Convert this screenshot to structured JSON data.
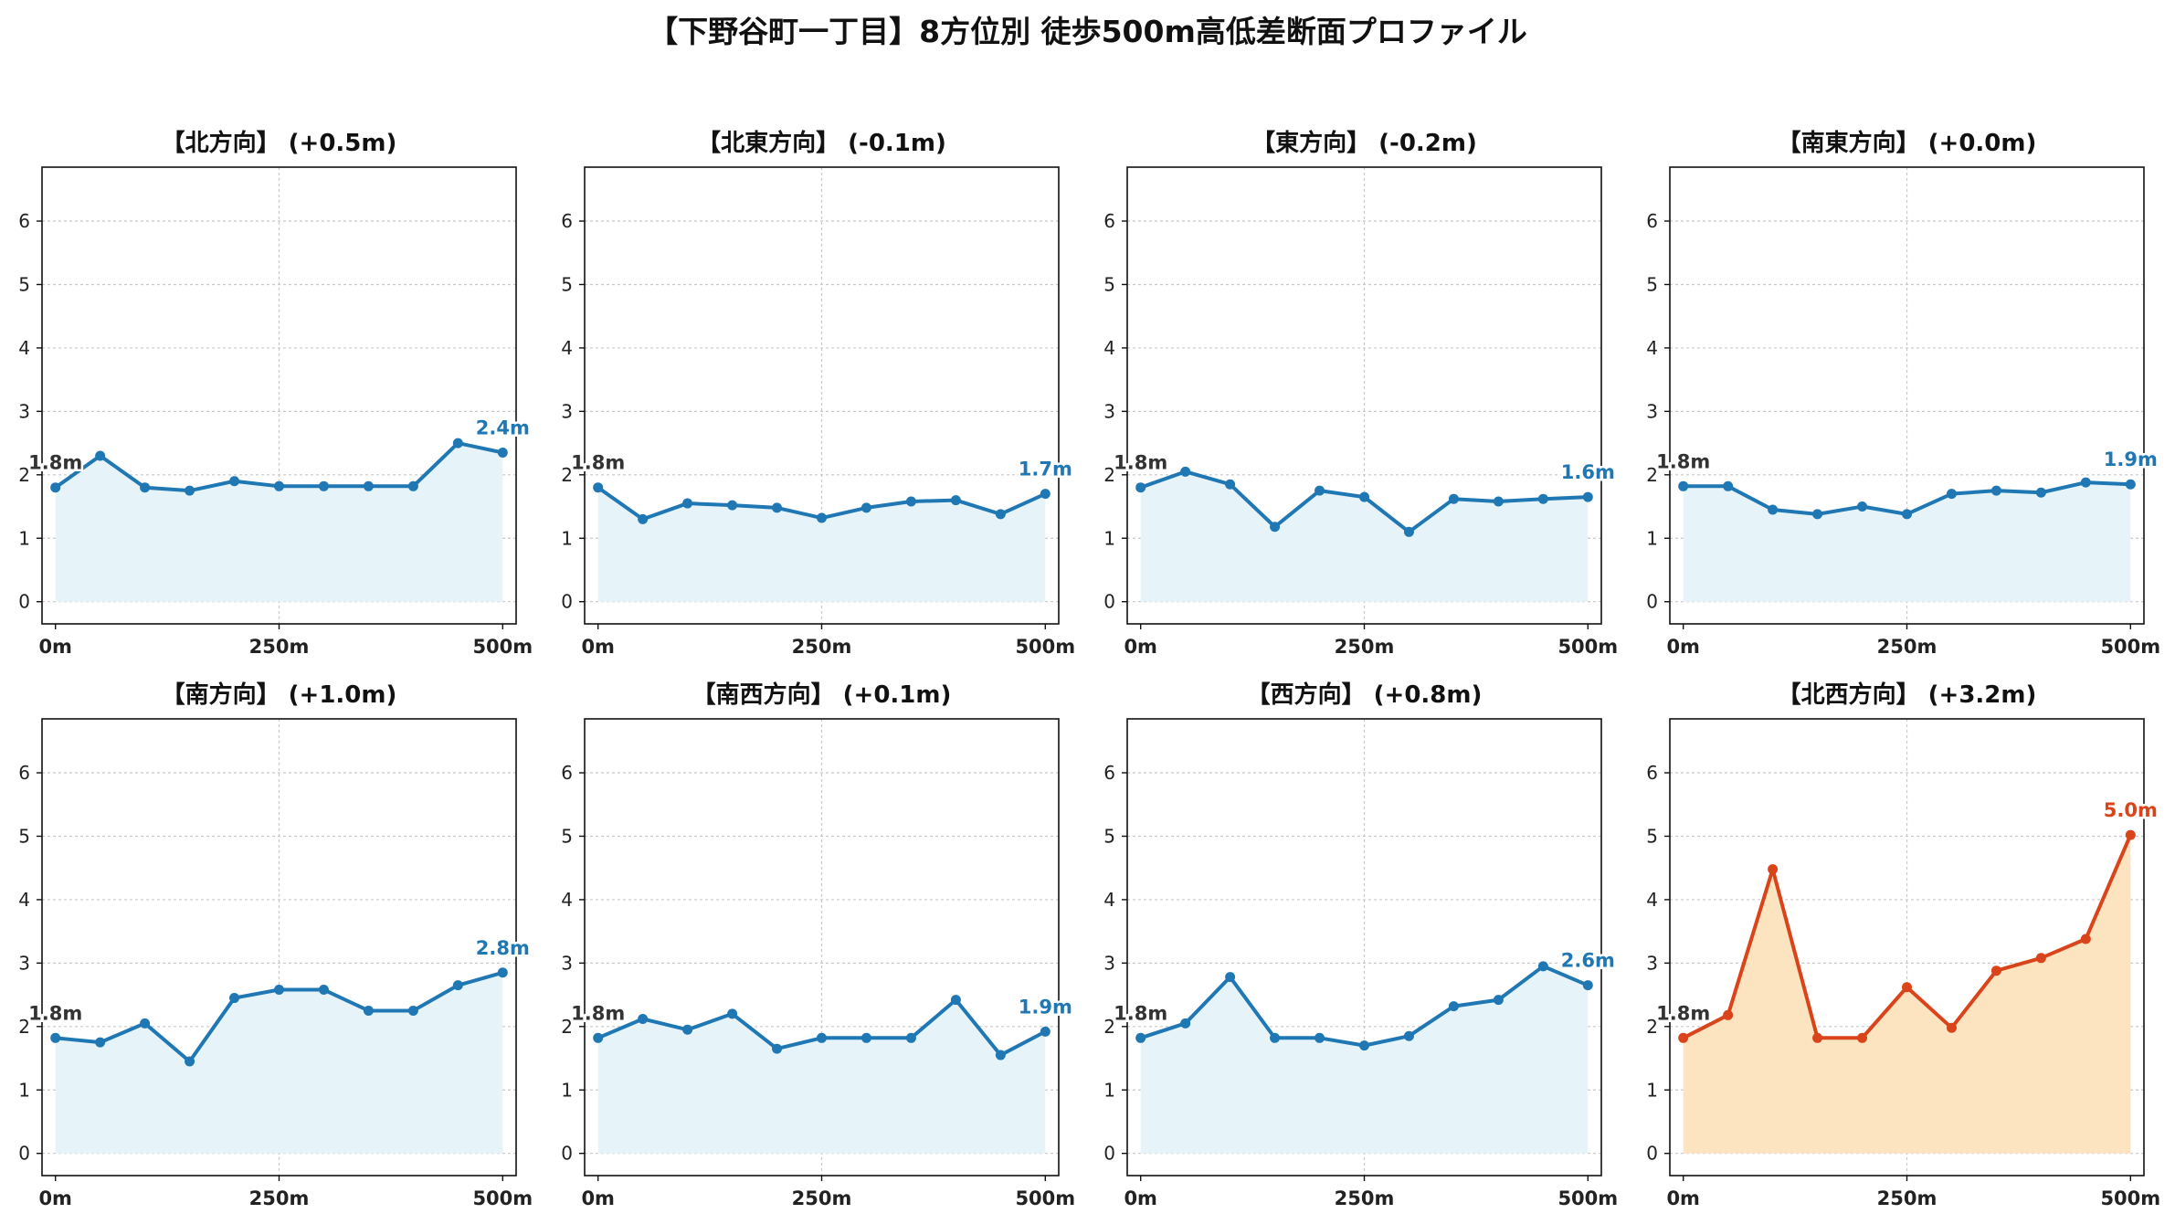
{
  "title": "【下野谷町一丁目】8方位別 徒歩500m高低差断面プロファイル",
  "colors": {
    "line_default": "#1f77b4",
    "fill_default": "#e6f4fa",
    "line_highlight": "#d9441a",
    "fill_highlight": "#fde4c0"
  },
  "chart_data": [
    {
      "type": "area",
      "title": "【北方向】 (+0.5m)",
      "x": [
        0,
        50,
        100,
        150,
        200,
        250,
        300,
        350,
        400,
        450,
        500
      ],
      "xticks": [
        "0m",
        "250m",
        "500m"
      ],
      "ylim": [
        -0.35,
        6.85
      ],
      "yticks": [
        0,
        1,
        2,
        3,
        4,
        5,
        6
      ],
      "grid": true,
      "highlight": false,
      "series": [
        {
          "values": [
            1.8,
            2.3,
            1.8,
            1.75,
            1.9,
            1.82,
            1.82,
            1.82,
            1.82,
            2.5,
            2.35
          ]
        }
      ],
      "start_label": "1.8m",
      "end_label": "2.4m"
    },
    {
      "type": "area",
      "title": "【北東方向】 (-0.1m)",
      "x": [
        0,
        50,
        100,
        150,
        200,
        250,
        300,
        350,
        400,
        450,
        500
      ],
      "xticks": [
        "0m",
        "250m",
        "500m"
      ],
      "ylim": [
        -0.35,
        6.85
      ],
      "yticks": [
        0,
        1,
        2,
        3,
        4,
        5,
        6
      ],
      "grid": true,
      "highlight": false,
      "series": [
        {
          "values": [
            1.8,
            1.3,
            1.55,
            1.52,
            1.48,
            1.32,
            1.48,
            1.58,
            1.6,
            1.38,
            1.7
          ]
        }
      ],
      "start_label": "1.8m",
      "end_label": "1.7m"
    },
    {
      "type": "area",
      "title": "【東方向】 (-0.2m)",
      "x": [
        0,
        50,
        100,
        150,
        200,
        250,
        300,
        350,
        400,
        450,
        500
      ],
      "xticks": [
        "0m",
        "250m",
        "500m"
      ],
      "ylim": [
        -0.35,
        6.85
      ],
      "yticks": [
        0,
        1,
        2,
        3,
        4,
        5,
        6
      ],
      "grid": true,
      "highlight": false,
      "series": [
        {
          "values": [
            1.8,
            2.05,
            1.85,
            1.18,
            1.75,
            1.65,
            1.1,
            1.62,
            1.58,
            1.62,
            1.65
          ]
        }
      ],
      "start_label": "1.8m",
      "end_label": "1.6m"
    },
    {
      "type": "area",
      "title": "【南東方向】 (+0.0m)",
      "x": [
        0,
        50,
        100,
        150,
        200,
        250,
        300,
        350,
        400,
        450,
        500
      ],
      "xticks": [
        "0m",
        "250m",
        "500m"
      ],
      "ylim": [
        -0.35,
        6.85
      ],
      "yticks": [
        0,
        1,
        2,
        3,
        4,
        5,
        6
      ],
      "grid": true,
      "highlight": false,
      "series": [
        {
          "values": [
            1.82,
            1.82,
            1.45,
            1.38,
            1.5,
            1.38,
            1.7,
            1.75,
            1.72,
            1.88,
            1.85
          ]
        }
      ],
      "start_label": "1.8m",
      "end_label": "1.9m"
    },
    {
      "type": "area",
      "title": "【南方向】 (+1.0m)",
      "x": [
        0,
        50,
        100,
        150,
        200,
        250,
        300,
        350,
        400,
        450,
        500
      ],
      "xticks": [
        "0m",
        "250m",
        "500m"
      ],
      "ylim": [
        -0.35,
        6.85
      ],
      "yticks": [
        0,
        1,
        2,
        3,
        4,
        5,
        6
      ],
      "grid": true,
      "highlight": false,
      "series": [
        {
          "values": [
            1.82,
            1.75,
            2.05,
            1.45,
            2.45,
            2.58,
            2.58,
            2.25,
            2.25,
            2.65,
            2.85
          ]
        }
      ],
      "start_label": "1.8m",
      "end_label": "2.8m"
    },
    {
      "type": "area",
      "title": "【南西方向】 (+0.1m)",
      "x": [
        0,
        50,
        100,
        150,
        200,
        250,
        300,
        350,
        400,
        450,
        500
      ],
      "xticks": [
        "0m",
        "250m",
        "500m"
      ],
      "ylim": [
        -0.35,
        6.85
      ],
      "yticks": [
        0,
        1,
        2,
        3,
        4,
        5,
        6
      ],
      "grid": true,
      "highlight": false,
      "series": [
        {
          "values": [
            1.82,
            2.12,
            1.95,
            2.2,
            1.65,
            1.82,
            1.82,
            1.82,
            2.42,
            1.55,
            1.92
          ]
        }
      ],
      "start_label": "1.8m",
      "end_label": "1.9m"
    },
    {
      "type": "area",
      "title": "【西方向】 (+0.8m)",
      "x": [
        0,
        50,
        100,
        150,
        200,
        250,
        300,
        350,
        400,
        450,
        500
      ],
      "xticks": [
        "0m",
        "250m",
        "500m"
      ],
      "ylim": [
        -0.35,
        6.85
      ],
      "yticks": [
        0,
        1,
        2,
        3,
        4,
        5,
        6
      ],
      "grid": true,
      "highlight": false,
      "series": [
        {
          "values": [
            1.82,
            2.05,
            2.78,
            1.82,
            1.82,
            1.7,
            1.85,
            2.32,
            2.42,
            2.95,
            2.65
          ]
        }
      ],
      "start_label": "1.8m",
      "end_label": "2.6m"
    },
    {
      "type": "area",
      "title": "【北西方向】 (+3.2m)",
      "x": [
        0,
        50,
        100,
        150,
        200,
        250,
        300,
        350,
        400,
        450,
        500
      ],
      "xticks": [
        "0m",
        "250m",
        "500m"
      ],
      "ylim": [
        -0.35,
        6.85
      ],
      "yticks": [
        0,
        1,
        2,
        3,
        4,
        5,
        6
      ],
      "grid": true,
      "highlight": true,
      "series": [
        {
          "values": [
            1.82,
            2.18,
            4.48,
            1.82,
            1.82,
            2.62,
            1.98,
            2.88,
            3.08,
            3.38,
            5.02
          ]
        }
      ],
      "start_label": "1.8m",
      "end_label": "5.0m"
    }
  ]
}
